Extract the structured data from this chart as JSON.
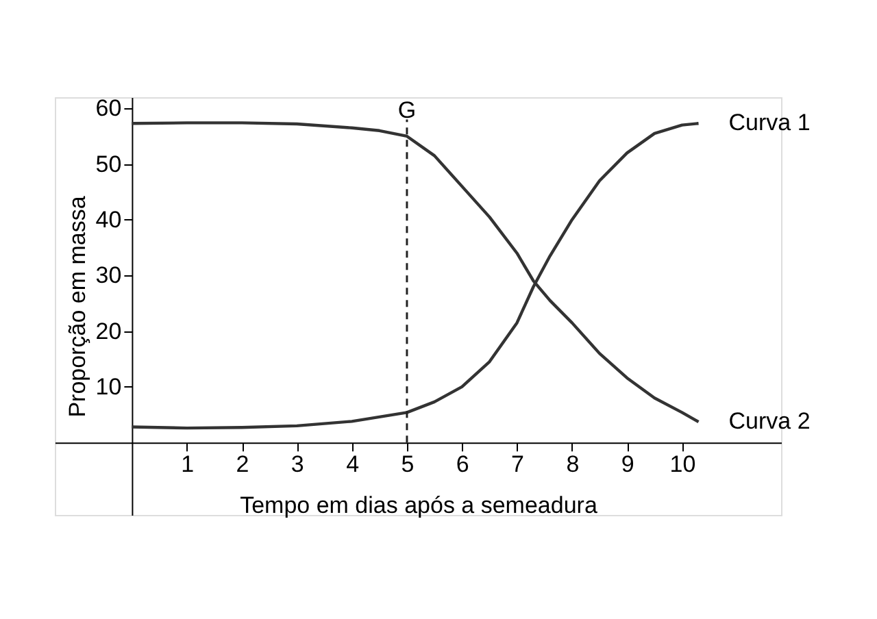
{
  "chart_data": {
    "type": "line",
    "xlabel": "Tempo em dias após a semeadura",
    "ylabel": "Proporção em massa",
    "xlim": [
      -1.4,
      11.8
    ],
    "ylim": [
      -13,
      62
    ],
    "xticks": [
      1,
      2,
      3,
      4,
      5,
      6,
      7,
      8,
      9,
      10
    ],
    "yticks": [
      10,
      20,
      30,
      40,
      50,
      60
    ],
    "grid": false,
    "marker": "none",
    "line_style": "solid",
    "series": [
      {
        "name": "Curva 1",
        "color": "#333333",
        "x": [
          0,
          1,
          2,
          3,
          4,
          5,
          5.5,
          6,
          6.5,
          7,
          7.3,
          7.6,
          8,
          8.5,
          9,
          9.5,
          10,
          10.3
        ],
        "values": [
          2.8,
          2.6,
          2.7,
          3.0,
          3.8,
          5.4,
          7.3,
          10,
          14.5,
          21.5,
          28,
          33.5,
          40,
          47,
          52,
          55.5,
          57,
          57.3
        ]
      },
      {
        "name": "Curva 2",
        "color": "#333333",
        "x": [
          0,
          1,
          2,
          3,
          4,
          4.5,
          5,
          5.5,
          6,
          6.5,
          7,
          7.3,
          7.6,
          8,
          8.5,
          9,
          9.5,
          10,
          10.3
        ],
        "values": [
          57.3,
          57.4,
          57.4,
          57.2,
          56.5,
          56,
          55,
          51.5,
          46,
          40.5,
          34,
          29,
          25.5,
          21.5,
          16,
          11.6,
          8,
          5.4,
          3.7
        ]
      }
    ],
    "ref_lines": [
      {
        "axis": "x",
        "value": 5,
        "label": "G",
        "color": "#222222",
        "line_style": "dashed"
      }
    ]
  }
}
